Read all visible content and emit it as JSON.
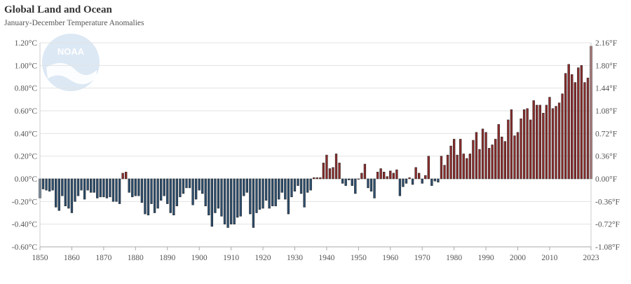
{
  "header": {
    "title": "Global Land and Ocean",
    "subtitle": "January-December Temperature Anomalies"
  },
  "colors": {
    "negative": "#2d4e6e",
    "positive": "#8b2c2c",
    "outline": "#1e1e1e",
    "grid": "#e2e2e2",
    "axis": "#cccccc",
    "logo": "#dce8f4"
  },
  "logo": {
    "label": "NOAA",
    "icon": "noaa-logo-icon"
  },
  "chart_data": {
    "type": "bar",
    "x_start": 1850,
    "x_end": 2023,
    "ylim": [
      -0.6,
      1.2
    ],
    "ylim_right": [
      -1.08,
      2.16
    ],
    "grid": true,
    "y_ticks_left": [
      "1.20°C",
      "1.00°C",
      "0.80°C",
      "0.60°C",
      "0.40°C",
      "0.20°C",
      "0.00°C",
      "-0.20°C",
      "-0.40°C",
      "-0.60°C"
    ],
    "y_ticks_right": [
      "2.16°F",
      "1.80°F",
      "1.44°F",
      "1.08°F",
      "0.72°F",
      "0.36°F",
      "0.00°F",
      "-0.36°F",
      "-0.72°F",
      "-1.08°F"
    ],
    "x_ticks": [
      "1850",
      "1860",
      "1870",
      "1880",
      "1890",
      "1900",
      "1910",
      "1920",
      "1930",
      "1940",
      "1950",
      "1960",
      "1970",
      "1980",
      "1990",
      "2000",
      "2010",
      "2023"
    ],
    "values": [
      -0.17,
      -0.09,
      -0.1,
      -0.11,
      -0.1,
      -0.25,
      -0.28,
      -0.15,
      -0.24,
      -0.26,
      -0.3,
      -0.2,
      -0.15,
      -0.1,
      -0.18,
      -0.1,
      -0.12,
      -0.12,
      -0.17,
      -0.16,
      -0.16,
      -0.17,
      -0.16,
      -0.2,
      -0.2,
      -0.22,
      0.05,
      0.06,
      -0.12,
      -0.16,
      -0.15,
      -0.15,
      -0.21,
      -0.31,
      -0.32,
      -0.22,
      -0.3,
      -0.26,
      -0.19,
      -0.15,
      -0.22,
      -0.3,
      -0.32,
      -0.24,
      -0.16,
      -0.13,
      -0.08,
      -0.08,
      -0.23,
      -0.18,
      -0.1,
      -0.13,
      -0.24,
      -0.32,
      -0.42,
      -0.3,
      -0.26,
      -0.33,
      -0.4,
      -0.43,
      -0.4,
      -0.4,
      -0.34,
      -0.33,
      -0.15,
      -0.12,
      -0.31,
      -0.43,
      -0.3,
      -0.27,
      -0.26,
      -0.19,
      -0.26,
      -0.24,
      -0.24,
      -0.18,
      -0.12,
      -0.18,
      -0.31,
      -0.16,
      -0.11,
      -0.06,
      -0.13,
      -0.25,
      -0.12,
      -0.1,
      0.01,
      0.01,
      0.01,
      0.14,
      0.21,
      0.09,
      0.1,
      0.22,
      0.14,
      -0.04,
      -0.06,
      -0.01,
      -0.06,
      -0.13,
      0.0,
      0.05,
      0.13,
      -0.08,
      -0.11,
      -0.17,
      0.06,
      0.09,
      0.06,
      0.02,
      0.07,
      0.05,
      0.08,
      -0.15,
      -0.07,
      -0.04,
      0.01,
      -0.05,
      0.1,
      0.05,
      -0.04,
      0.03,
      0.2,
      -0.06,
      -0.02,
      -0.03,
      0.2,
      0.12,
      0.21,
      0.29,
      0.35,
      0.21,
      0.35,
      0.22,
      0.18,
      0.22,
      0.34,
      0.41,
      0.26,
      0.44,
      0.41,
      0.27,
      0.3,
      0.35,
      0.48,
      0.37,
      0.33,
      0.52,
      0.61,
      0.38,
      0.41,
      0.53,
      0.61,
      0.62,
      0.52,
      0.69,
      0.65,
      0.65,
      0.58,
      0.65,
      0.72,
      0.62,
      0.64,
      0.67,
      0.75,
      0.93,
      1.01,
      0.92,
      0.85,
      0.98,
      1.0,
      0.85,
      0.89,
      1.17
    ]
  }
}
